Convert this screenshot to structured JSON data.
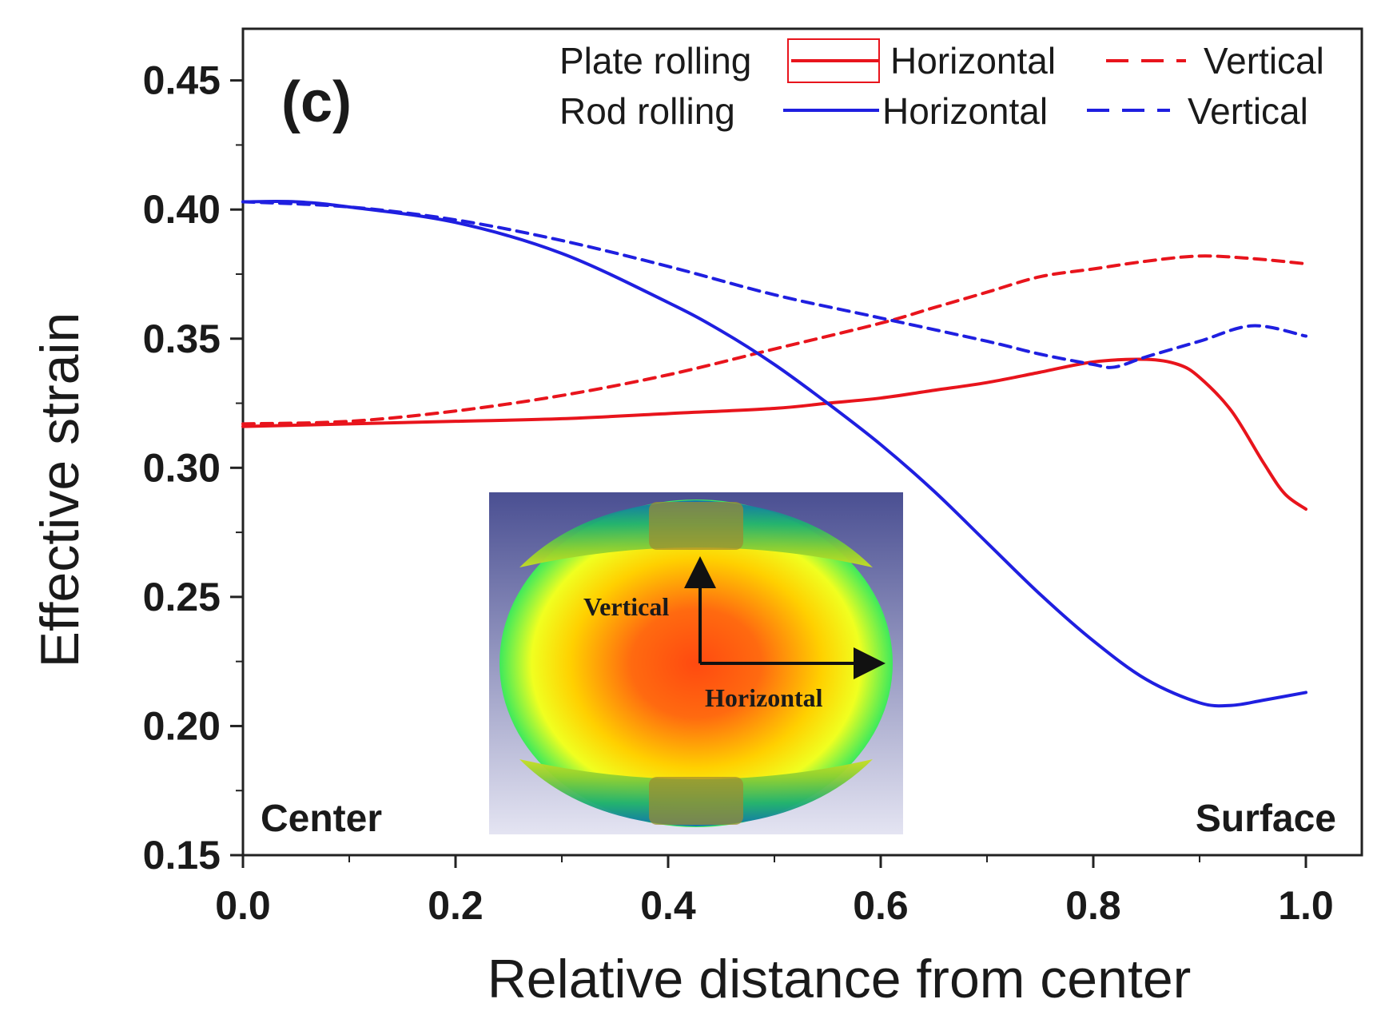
{
  "chart_data": {
    "type": "line",
    "panel_label": "(c)",
    "xlabel": "Relative distance from center",
    "ylabel": "Effective strain",
    "xlim": [
      0.0,
      1.0
    ],
    "ylim": [
      0.15,
      0.47
    ],
    "x_ticks": [
      0.0,
      0.2,
      0.4,
      0.6,
      0.8,
      1.0
    ],
    "x_tick_labels": [
      "0.0",
      "0.2",
      "0.4",
      "0.6",
      "0.8",
      "1.0"
    ],
    "y_ticks": [
      0.15,
      0.2,
      0.25,
      0.3,
      0.35,
      0.4,
      0.45
    ],
    "y_tick_labels": [
      "0.15",
      "0.20",
      "0.25",
      "0.30",
      "0.35",
      "0.40",
      "0.45"
    ],
    "grid": false,
    "legend": {
      "position": "top-right",
      "groups": [
        {
          "label": "Plate rolling",
          "solid_label": "Horizontal",
          "dashed_label": "Vertical",
          "color": "#e8141c"
        },
        {
          "label": "Rod rolling",
          "solid_label": "Horizontal",
          "dashed_label": "Vertical",
          "color": "#1f1fe0"
        }
      ]
    },
    "series": [
      {
        "name": "Plate rolling - Horizontal",
        "color": "#e8141c",
        "style": "solid",
        "x": [
          0.0,
          0.1,
          0.2,
          0.3,
          0.4,
          0.5,
          0.55,
          0.6,
          0.65,
          0.7,
          0.75,
          0.8,
          0.85,
          0.88,
          0.9,
          0.93,
          0.96,
          0.98,
          1.0
        ],
        "y": [
          0.316,
          0.317,
          0.318,
          0.319,
          0.321,
          0.323,
          0.325,
          0.327,
          0.33,
          0.333,
          0.337,
          0.341,
          0.342,
          0.34,
          0.335,
          0.322,
          0.302,
          0.29,
          0.284
        ]
      },
      {
        "name": "Plate rolling - Vertical",
        "color": "#e8141c",
        "style": "dashed",
        "x": [
          0.0,
          0.1,
          0.2,
          0.3,
          0.4,
          0.5,
          0.6,
          0.65,
          0.7,
          0.75,
          0.8,
          0.85,
          0.9,
          0.95,
          1.0
        ],
        "y": [
          0.317,
          0.318,
          0.322,
          0.328,
          0.336,
          0.346,
          0.356,
          0.362,
          0.368,
          0.374,
          0.377,
          0.38,
          0.382,
          0.381,
          0.379
        ]
      },
      {
        "name": "Rod rolling - Horizontal",
        "color": "#1f1fe0",
        "style": "solid",
        "x": [
          0.0,
          0.05,
          0.1,
          0.2,
          0.3,
          0.4,
          0.45,
          0.5,
          0.55,
          0.6,
          0.65,
          0.7,
          0.75,
          0.8,
          0.85,
          0.9,
          0.93,
          0.96,
          1.0
        ],
        "y": [
          0.403,
          0.403,
          0.401,
          0.395,
          0.383,
          0.364,
          0.353,
          0.34,
          0.325,
          0.309,
          0.291,
          0.271,
          0.251,
          0.233,
          0.218,
          0.209,
          0.208,
          0.21,
          0.213
        ]
      },
      {
        "name": "Rod rolling - Vertical",
        "color": "#1f1fe0",
        "style": "dashed",
        "x": [
          0.0,
          0.1,
          0.2,
          0.3,
          0.4,
          0.5,
          0.6,
          0.7,
          0.75,
          0.8,
          0.82,
          0.85,
          0.9,
          0.95,
          1.0
        ],
        "y": [
          0.403,
          0.401,
          0.396,
          0.388,
          0.378,
          0.367,
          0.358,
          0.349,
          0.344,
          0.34,
          0.339,
          0.343,
          0.349,
          0.355,
          0.351
        ]
      }
    ],
    "annotations": {
      "center_label": "Center",
      "surface_label": "Surface"
    },
    "inset": {
      "description_labels": {
        "vertical": "Vertical",
        "horizontal": "Horizontal"
      }
    }
  }
}
